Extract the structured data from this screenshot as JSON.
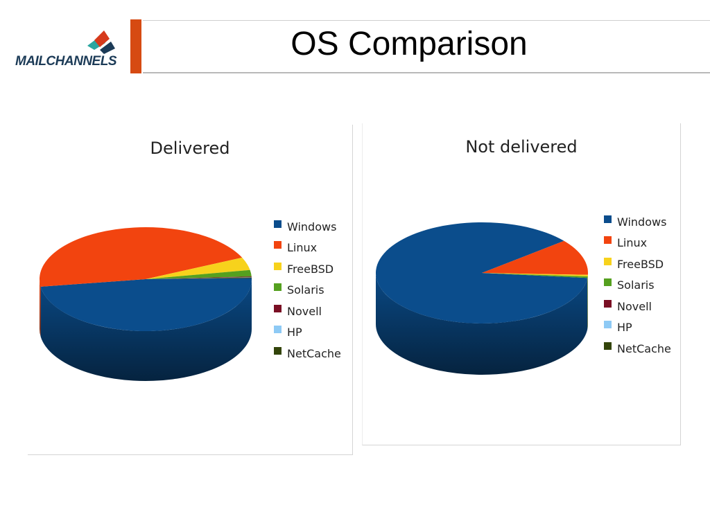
{
  "header": {
    "logo_text": "MAILCHANNELS",
    "title": "OS Comparison"
  },
  "colors": {
    "Windows": "#0b4d8c",
    "Linux": "#f2440f",
    "FreeBSD": "#f7d21c",
    "Solaris": "#55a01f",
    "Novell": "#7a0f24",
    "HP": "#8ecaf5",
    "NetCache": "#33440a"
  },
  "chart_data": [
    {
      "type": "pie",
      "title": "Delivered",
      "categories": [
        "Windows",
        "Linux",
        "FreeBSD",
        "Solaris",
        "Novell",
        "HP",
        "NetCache"
      ],
      "values": [
        48,
        45.5,
        4,
        2,
        0.2,
        0.1,
        0.2
      ],
      "legend": "right"
    },
    {
      "type": "pie",
      "title": "Not delivered",
      "categories": [
        "Windows",
        "Linux",
        "FreeBSD",
        "Solaris",
        "Novell",
        "HP",
        "NetCache"
      ],
      "values": [
        87.5,
        11.5,
        0.5,
        0.5,
        0,
        0,
        0
      ],
      "legend": "right"
    }
  ]
}
